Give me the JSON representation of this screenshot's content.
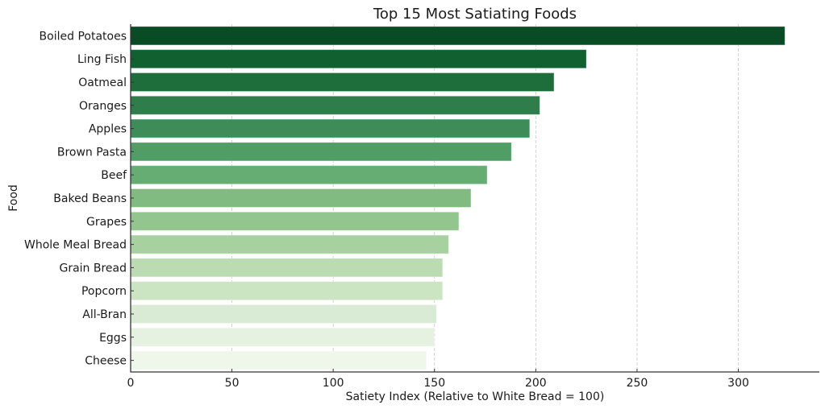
{
  "chart_data": {
    "type": "bar",
    "orientation": "horizontal",
    "title": "Top 15 Most Satiating Foods",
    "xlabel": "Satiety Index (Relative to White Bread = 100)",
    "ylabel": "Food",
    "xlim": [
      0,
      340
    ],
    "xticks": [
      0,
      50,
      100,
      150,
      200,
      250,
      300
    ],
    "xtick_labels": [
      "0",
      "50",
      "100",
      "150",
      "200",
      "250",
      "300"
    ],
    "grid": "x dashed",
    "categories": [
      "Boiled Potatoes",
      "Ling Fish",
      "Oatmeal",
      "Oranges",
      "Apples",
      "Brown Pasta",
      "Beef",
      "Baked Beans",
      "Grapes",
      "Whole Meal Bread",
      "Grain Bread",
      "Popcorn",
      "All-Bran",
      "Eggs",
      "Cheese"
    ],
    "values": [
      323,
      225,
      209,
      202,
      197,
      188,
      176,
      168,
      162,
      157,
      154,
      154,
      151,
      150,
      146
    ],
    "colors": [
      "#084b24",
      "#106030",
      "#1e6e3c",
      "#2e7d4a",
      "#3e8d58",
      "#519d66",
      "#66ad73",
      "#81bb81",
      "#93c58f",
      "#a8d1a0",
      "#bbdcb3",
      "#cbe5c3",
      "#d9ebd5",
      "#e5f2e1",
      "#eef7ea"
    ]
  }
}
